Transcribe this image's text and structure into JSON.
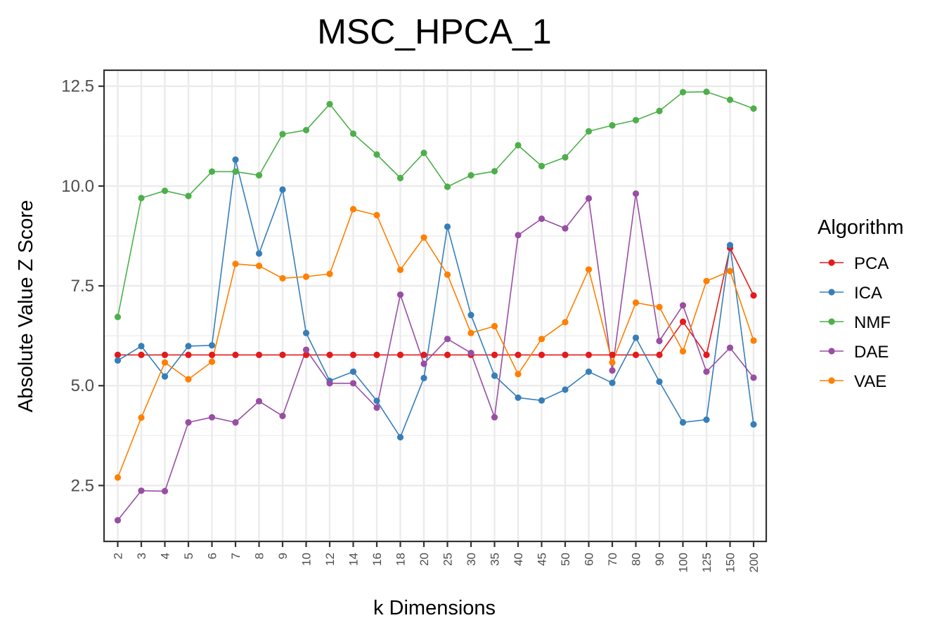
{
  "chart_data": {
    "type": "line",
    "title": "MSC_HPCA_1",
    "xlabel": "k Dimensions",
    "ylabel": "Absolute Value Z Score",
    "categories": [
      "2",
      "3",
      "4",
      "5",
      "6",
      "7",
      "8",
      "9",
      "10",
      "12",
      "14",
      "16",
      "18",
      "20",
      "25",
      "30",
      "35",
      "40",
      "45",
      "50",
      "60",
      "70",
      "80",
      "90",
      "100",
      "125",
      "150",
      "200"
    ],
    "ylim": [
      1.1,
      12.9
    ],
    "yticks": [
      2.5,
      5.0,
      7.5,
      10.0,
      12.5
    ],
    "ytick_labels": [
      "2.5",
      "5.0",
      "7.5",
      "10.0",
      "12.5"
    ],
    "grid": true,
    "legend": {
      "title": "Algorithm",
      "position": "right"
    },
    "series": [
      {
        "name": "PCA",
        "color": "#e41a1c",
        "values": [
          5.77,
          5.77,
          5.77,
          5.77,
          5.77,
          5.77,
          5.77,
          5.77,
          5.77,
          5.77,
          5.77,
          5.77,
          5.77,
          5.77,
          5.77,
          5.77,
          5.77,
          5.77,
          5.77,
          5.77,
          5.77,
          5.77,
          5.77,
          5.77,
          6.6,
          5.77,
          8.45,
          7.26
        ]
      },
      {
        "name": "ICA",
        "color": "#377eb8",
        "values": [
          5.63,
          5.99,
          5.23,
          5.99,
          6.01,
          10.66,
          8.31,
          9.91,
          6.32,
          5.12,
          5.35,
          4.62,
          3.71,
          5.19,
          8.98,
          6.77,
          5.25,
          4.7,
          4.63,
          4.9,
          5.35,
          5.07,
          6.2,
          5.1,
          4.08,
          4.15,
          8.52,
          4.03
        ]
      },
      {
        "name": "NMF",
        "color": "#4daf4a",
        "values": [
          6.72,
          9.7,
          9.88,
          9.75,
          10.36,
          10.36,
          10.27,
          11.3,
          11.4,
          12.05,
          11.31,
          10.79,
          10.2,
          10.83,
          9.98,
          10.27,
          10.37,
          11.02,
          10.5,
          10.72,
          11.37,
          11.52,
          11.65,
          11.88,
          12.35,
          12.36,
          12.16,
          11.94
        ]
      },
      {
        "name": "DAE",
        "color": "#984ea3",
        "values": [
          1.63,
          2.37,
          2.36,
          4.08,
          4.21,
          4.08,
          4.61,
          4.24,
          5.9,
          5.06,
          5.06,
          4.45,
          7.28,
          5.55,
          6.17,
          5.82,
          4.21,
          8.77,
          9.18,
          8.94,
          9.69,
          5.38,
          9.81,
          6.12,
          7.01,
          5.35,
          5.95,
          5.2
        ]
      },
      {
        "name": "VAE",
        "color": "#ff7f00",
        "values": [
          2.7,
          4.2,
          5.58,
          5.16,
          5.6,
          8.05,
          8.0,
          7.69,
          7.73,
          7.8,
          9.42,
          9.27,
          7.9,
          8.71,
          7.78,
          6.32,
          6.49,
          5.29,
          6.17,
          6.59,
          7.91,
          5.58,
          7.08,
          6.97,
          5.86,
          7.62,
          7.87,
          6.13
        ]
      }
    ]
  }
}
